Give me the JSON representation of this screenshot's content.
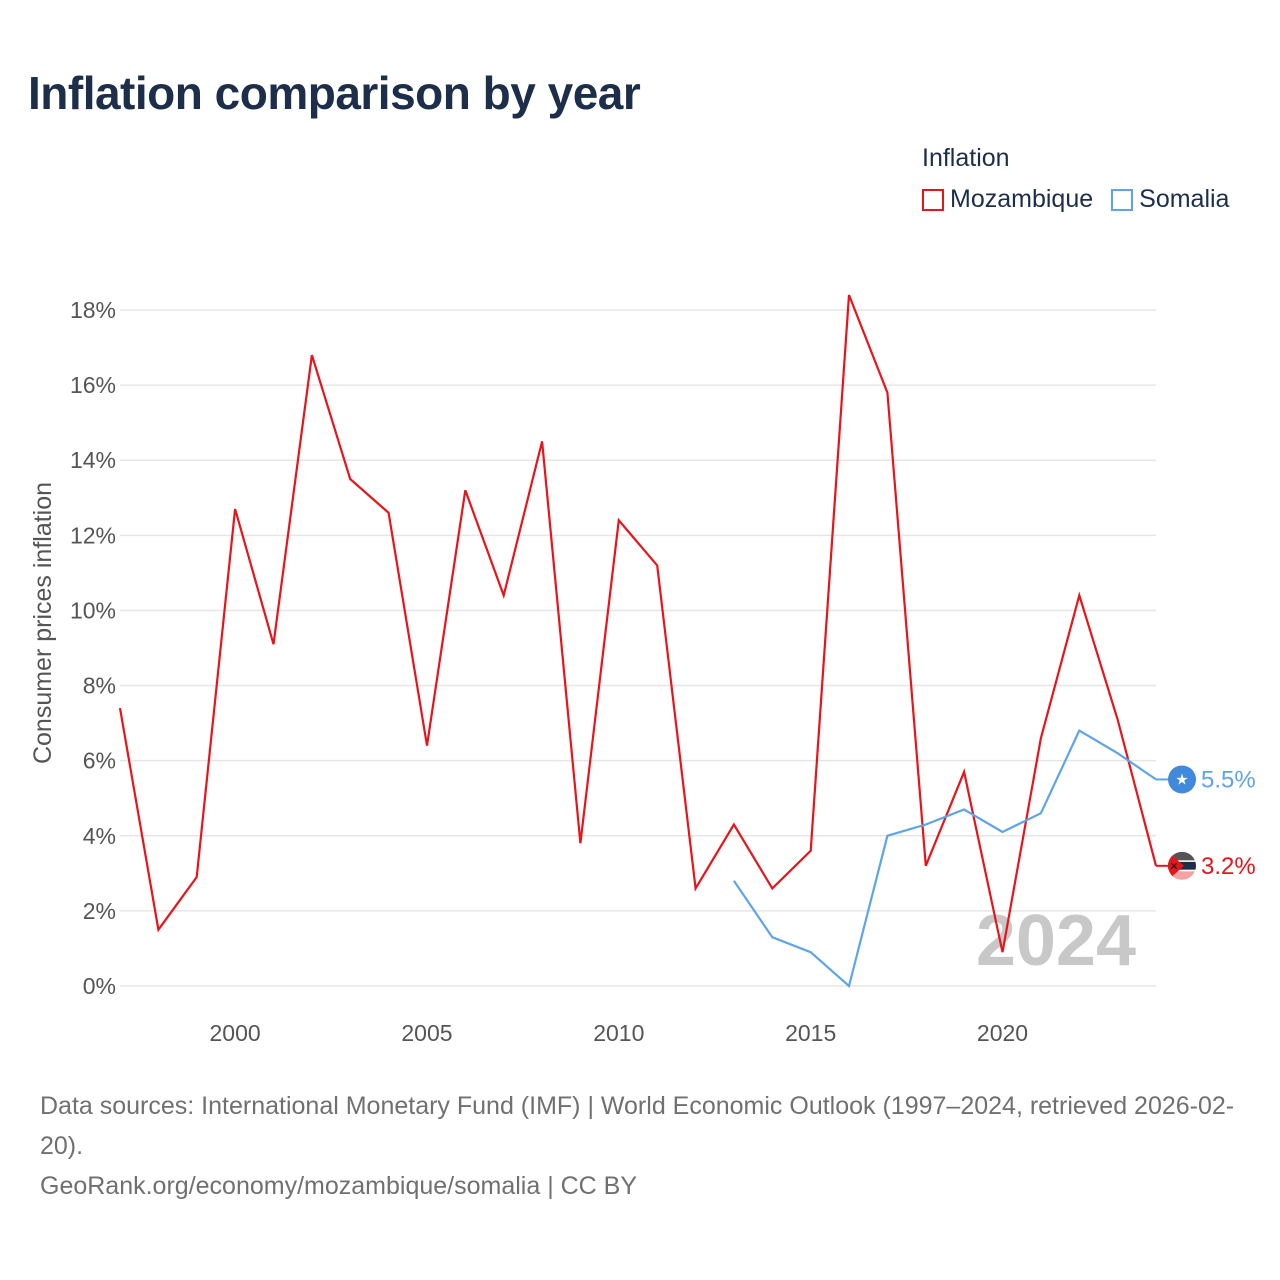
{
  "title": "Inflation comparison by year",
  "legend": {
    "title": "Inflation",
    "items": [
      {
        "label": "Mozambique",
        "color": "#e8141b"
      },
      {
        "label": "Somalia",
        "color": "#5ea4e8"
      }
    ]
  },
  "footer": {
    "source": "Data sources: International Monetary Fund (IMF) | World Economic Outlook (1997–2024, retrieved 2026-02-20).",
    "credit": "GeoRank.org/economy/mozambique/somalia | CC BY"
  },
  "chart_data": {
    "type": "line",
    "title": "Inflation comparison by year",
    "xlabel": "",
    "ylabel": "Consumer prices inflation",
    "xlim": [
      1997,
      2024
    ],
    "ylim": [
      0,
      18
    ],
    "grid": true,
    "legend_position": "top-right",
    "x_ticks": [
      {
        "value": 2000,
        "label": "2000"
      },
      {
        "value": 2005,
        "label": "2005"
      },
      {
        "value": 2010,
        "label": "2010"
      },
      {
        "value": 2015,
        "label": "2015"
      },
      {
        "value": 2020,
        "label": "2020"
      }
    ],
    "y_ticks": [
      {
        "value": 0,
        "label": "0%"
      },
      {
        "value": 2,
        "label": "2%"
      },
      {
        "value": 4,
        "label": "4%"
      },
      {
        "value": 6,
        "label": "6%"
      },
      {
        "value": 8,
        "label": "8%"
      },
      {
        "value": 10,
        "label": "10%"
      },
      {
        "value": 12,
        "label": "12%"
      },
      {
        "value": 14,
        "label": "14%"
      },
      {
        "value": 16,
        "label": "16%"
      },
      {
        "value": 18,
        "label": "18%"
      }
    ],
    "year_watermark": "2024",
    "series": [
      {
        "name": "Mozambique",
        "color": "#e8141b",
        "end_label": "3.2%",
        "flag_icon": "mozambique-flag-icon",
        "x": [
          1997,
          1998,
          1999,
          2000,
          2001,
          2002,
          2003,
          2004,
          2005,
          2006,
          2007,
          2008,
          2009,
          2010,
          2011,
          2012,
          2013,
          2014,
          2015,
          2016,
          2017,
          2018,
          2019,
          2020,
          2021,
          2022,
          2023,
          2024
        ],
        "values": [
          7.4,
          1.5,
          2.9,
          12.7,
          9.1,
          16.8,
          13.5,
          12.6,
          6.4,
          13.2,
          10.4,
          14.5,
          3.8,
          12.4,
          11.2,
          2.6,
          4.3,
          2.6,
          3.6,
          18.4,
          15.8,
          3.2,
          5.7,
          0.9,
          6.6,
          10.4,
          7.1,
          3.2
        ]
      },
      {
        "name": "Somalia",
        "color": "#5ea4e8",
        "end_label": "5.5%",
        "flag_icon": "somalia-flag-icon",
        "x": [
          2013,
          2014,
          2015,
          2016,
          2017,
          2018,
          2019,
          2020,
          2021,
          2022,
          2023,
          2024
        ],
        "values": [
          2.8,
          1.3,
          0.9,
          0.0,
          4.0,
          4.3,
          4.7,
          4.1,
          4.6,
          6.8,
          6.2,
          5.5
        ]
      }
    ]
  }
}
